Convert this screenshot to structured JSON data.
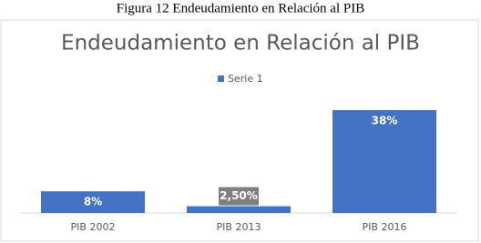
{
  "caption": "Figura 12 Endeudamiento en Relación al PIB",
  "chart_data": {
    "type": "bar",
    "title": "Endeudamiento en Relación al PIB",
    "categories": [
      "PIB 2002",
      "PIB 2013",
      "PIB 2016"
    ],
    "series": [
      {
        "name": "Serie 1",
        "color": "#4472c4",
        "values": [
          8,
          2.5,
          38
        ],
        "value_labels": [
          "8%",
          "2,50%",
          "38%"
        ]
      }
    ],
    "legend": "top"
  }
}
